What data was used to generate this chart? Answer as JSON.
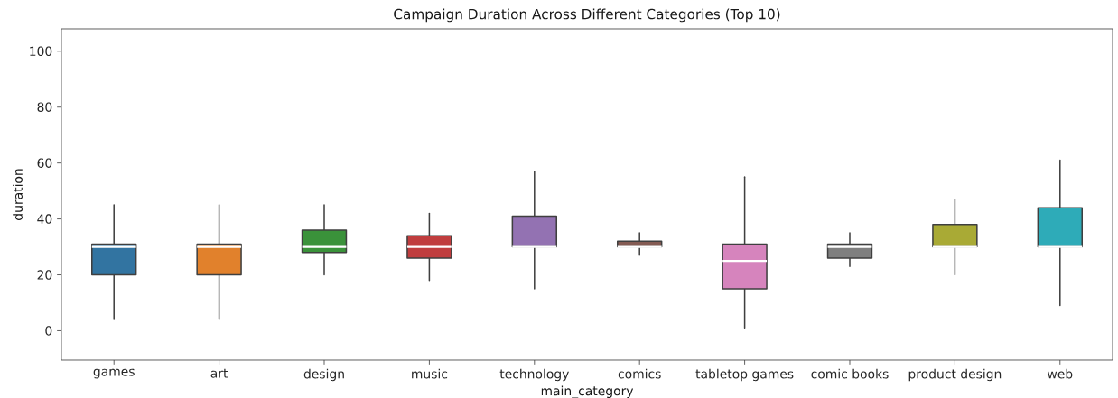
{
  "chart_data": {
    "type": "box",
    "title": "Campaign Duration Across Different Categories (Top 10)",
    "xlabel": "main_category",
    "ylabel": "duration",
    "categories": [
      "games",
      "art",
      "design",
      "music",
      "technology",
      "comics",
      "tabletop games",
      "comic books",
      "product design",
      "web"
    ],
    "colors": [
      "#3274a1",
      "#e1812c",
      "#3a923a",
      "#c03d3e",
      "#9372b2",
      "#845b53",
      "#d684bd",
      "#7f7f7f",
      "#a9aa35",
      "#2eabb8"
    ],
    "boxes": [
      {
        "low": 4,
        "q1": 20,
        "median": 30,
        "q3": 31,
        "high": 45
      },
      {
        "low": 4,
        "q1": 20,
        "median": 30,
        "q3": 31,
        "high": 45
      },
      {
        "low": 20,
        "q1": 28,
        "median": 30,
        "q3": 36,
        "high": 45
      },
      {
        "low": 18,
        "q1": 26,
        "median": 30,
        "q3": 34,
        "high": 42
      },
      {
        "low": 15,
        "q1": 30,
        "median": 30,
        "q3": 41,
        "high": 57
      },
      {
        "low": 27,
        "q1": 30,
        "median": 30,
        "q3": 32,
        "high": 35
      },
      {
        "low": 1,
        "q1": 15,
        "median": 25,
        "q3": 31,
        "high": 55
      },
      {
        "low": 23,
        "q1": 26,
        "median": 30,
        "q3": 31,
        "high": 35
      },
      {
        "low": 20,
        "q1": 30,
        "median": 30,
        "q3": 38,
        "high": 47
      },
      {
        "low": 9,
        "q1": 30,
        "median": 30,
        "q3": 44,
        "high": 61
      }
    ],
    "ylim": [
      -10.5,
      108
    ],
    "yticks": [
      0,
      20,
      40,
      60,
      80,
      100
    ]
  }
}
